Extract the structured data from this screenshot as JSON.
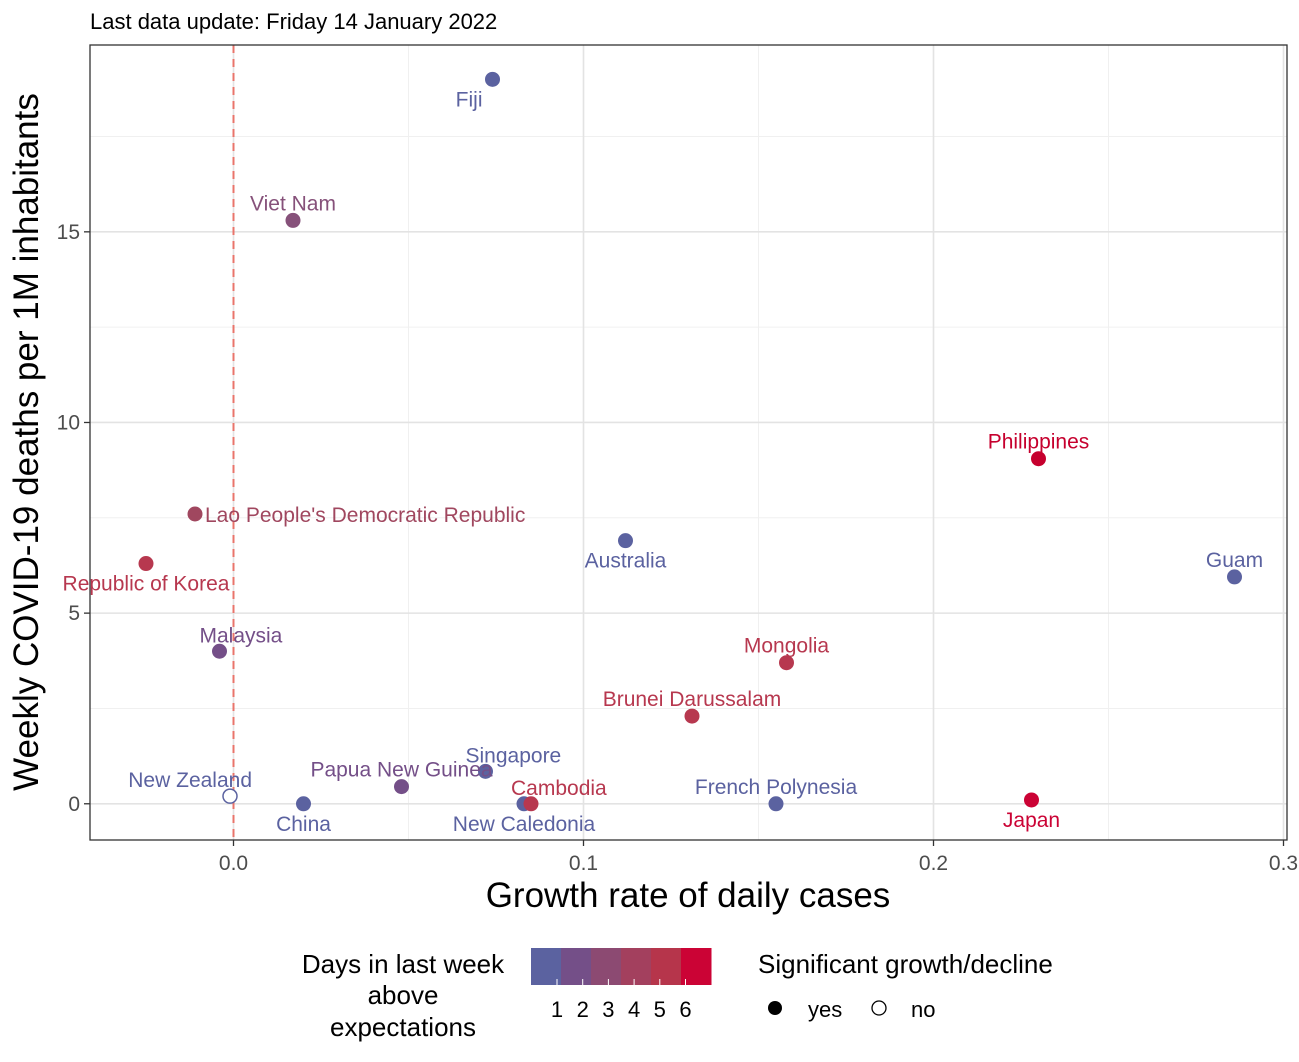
{
  "chart_data": {
    "type": "scatter",
    "subtitle": "Last data update: Friday 14 January 2022",
    "xlabel": "Growth rate of daily cases",
    "ylabel": "Weekly COVID-19 deaths per 1M inhabitants",
    "xlim": [
      -0.041,
      0.301
    ],
    "ylim": [
      -0.95,
      19.9
    ],
    "x_ticks": [
      0.0,
      0.1,
      0.2,
      0.3
    ],
    "x_tick_labels": [
      "0.0",
      "0.1",
      "0.2",
      "0.3"
    ],
    "y_ticks": [
      0,
      5,
      10,
      15
    ],
    "y_tick_labels": [
      "0",
      "5",
      "10",
      "15"
    ],
    "reference_line": {
      "x": 0.0,
      "color": "#e9746b",
      "style": "dashed"
    },
    "grid": true,
    "legend_position": "bottom",
    "color_legend": {
      "title_lines": [
        "Days in last week",
        "above",
        "expectations"
      ],
      "labels": [
        "1",
        "2",
        "3",
        "4",
        "5",
        "6"
      ],
      "colors": [
        "#5b62a0",
        "#744f88",
        "#8c4a72",
        "#a3405e",
        "#b6354b",
        "#cb0335"
      ]
    },
    "shape_legend": {
      "title": "Significant growth/decline",
      "entries": [
        {
          "label": "yes",
          "filled": true
        },
        {
          "label": "no",
          "filled": false
        }
      ]
    },
    "points": [
      {
        "label": "Fiji",
        "x": 0.074,
        "y": 19.0,
        "days": 1,
        "significant": true,
        "color": "#5b62a0",
        "label_pos": "below-left"
      },
      {
        "label": "Viet Nam",
        "x": 0.017,
        "y": 15.3,
        "days": 3,
        "significant": true,
        "color": "#86517a",
        "label_pos": "above"
      },
      {
        "label": "Philippines",
        "x": 0.23,
        "y": 9.05,
        "days": 6,
        "significant": true,
        "color": "#c6002e",
        "label_pos": "above"
      },
      {
        "label": "Lao People's Democratic Republic",
        "x": -0.011,
        "y": 7.6,
        "days": 4,
        "significant": true,
        "color": "#a0475f",
        "label_pos": "right"
      },
      {
        "label": "Republic of Korea",
        "x": -0.025,
        "y": 6.3,
        "days": 5,
        "significant": true,
        "color": "#b7384f",
        "label_pos": "below"
      },
      {
        "label": "Australia",
        "x": 0.112,
        "y": 6.9,
        "days": 1,
        "significant": true,
        "color": "#5b62a0",
        "label_pos": "below"
      },
      {
        "label": "Guam",
        "x": 0.286,
        "y": 5.95,
        "days": 1,
        "significant": true,
        "color": "#5b62a0",
        "label_pos": "above"
      },
      {
        "label": "Malaysia",
        "x": -0.004,
        "y": 4.0,
        "days": 2,
        "significant": true,
        "color": "#744f88",
        "label_pos": "above-right"
      },
      {
        "label": "Mongolia",
        "x": 0.158,
        "y": 3.7,
        "days": 5,
        "significant": true,
        "color": "#b7384f",
        "label_pos": "above"
      },
      {
        "label": "Brunei Darussalam",
        "x": 0.131,
        "y": 2.3,
        "days": 5,
        "significant": true,
        "color": "#b7384f",
        "label_pos": "above"
      },
      {
        "label": "Singapore",
        "x": 0.072,
        "y": 0.85,
        "days": 1,
        "significant": true,
        "color": "#5b62a0",
        "label_pos": "above-right"
      },
      {
        "label": "Papua New Guinea",
        "x": 0.048,
        "y": 0.45,
        "days": 2,
        "significant": true,
        "color": "#744f88",
        "label_pos": "above"
      },
      {
        "label": "New Zealand",
        "x": -0.001,
        "y": 0.2,
        "days": 1,
        "significant": false,
        "color": "#5b62a0",
        "label_pos": "above-left"
      },
      {
        "label": "China",
        "x": 0.02,
        "y": 0.0,
        "days": 1,
        "significant": true,
        "color": "#5b62a0",
        "label_pos": "below"
      },
      {
        "label": "New Caledonia",
        "x": 0.083,
        "y": 0.0,
        "days": 1,
        "significant": true,
        "color": "#5b62a0",
        "label_pos": "below"
      },
      {
        "label": "Cambodia",
        "x": 0.085,
        "y": 0.0,
        "days": 5,
        "significant": true,
        "color": "#b7384f",
        "label_pos": "above-right"
      },
      {
        "label": "French Polynesia",
        "x": 0.155,
        "y": 0.0,
        "days": 1,
        "significant": true,
        "color": "#5b62a0",
        "label_pos": "above"
      },
      {
        "label": "Japan",
        "x": 0.228,
        "y": 0.1,
        "days": 6,
        "significant": true,
        "color": "#cb0335",
        "label_pos": "below"
      }
    ]
  }
}
